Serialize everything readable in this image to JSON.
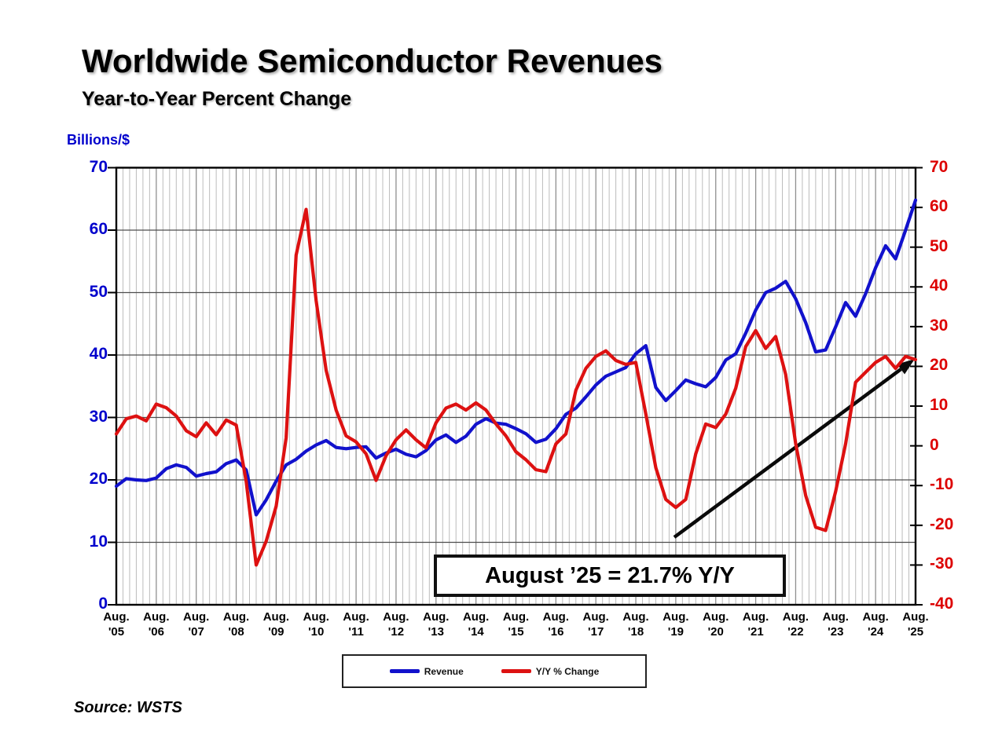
{
  "chart_data": {
    "type": "line",
    "title": "Worldwide Semiconductor Revenues",
    "subtitle": "Year-to-Year Percent Change",
    "source": "Source: WSTS",
    "annotation": {
      "text": "August ’25 = 21.7% Y/Y",
      "value_pct": 21.7,
      "points_to": "end of Y/Y % Change line"
    },
    "x_start": "Aug 2005",
    "x_end": "Aug 2025",
    "x_months": 240,
    "sample_interval_months": 3,
    "x_tick_labels": [
      {
        "l1": "Aug.",
        "l2": "'05"
      },
      {
        "l1": "Aug.",
        "l2": "'06"
      },
      {
        "l1": "Aug.",
        "l2": "'07"
      },
      {
        "l1": "Aug.",
        "l2": "'08"
      },
      {
        "l1": "Aug.",
        "l2": "'09"
      },
      {
        "l1": "Aug.",
        "l2": "'10"
      },
      {
        "l1": "Aug.",
        "l2": "'11"
      },
      {
        "l1": "Aug.",
        "l2": "'12"
      },
      {
        "l1": "Aug.",
        "l2": "'13"
      },
      {
        "l1": "Aug.",
        "l2": "'14"
      },
      {
        "l1": "Aug.",
        "l2": "'15"
      },
      {
        "l1": "Aug.",
        "l2": "'16"
      },
      {
        "l1": "Aug.",
        "l2": "'17"
      },
      {
        "l1": "Aug.",
        "l2": "'18"
      },
      {
        "l1": "Aug.",
        "l2": "'19"
      },
      {
        "l1": "Aug.",
        "l2": "'20"
      },
      {
        "l1": "Aug.",
        "l2": "'21"
      },
      {
        "l1": "Aug.",
        "l2": "'22"
      },
      {
        "l1": "Aug.",
        "l2": "'23"
      },
      {
        "l1": "Aug.",
        "l2": "'24"
      },
      {
        "l1": "Aug.",
        "l2": "'25"
      }
    ],
    "left_axis": {
      "unit_label": "Billions/$",
      "range": [
        0,
        70
      ],
      "ticks": [
        0,
        10,
        20,
        30,
        40,
        50,
        60,
        70
      ],
      "text_color": "#0000cc"
    },
    "right_axis": {
      "unit_label": "Y/Y % Change",
      "range": [
        -40,
        70
      ],
      "ticks": [
        -40,
        -30,
        -20,
        -10,
        0,
        10,
        20,
        30,
        40,
        50,
        60,
        70
      ],
      "text_color": "#dd0000"
    },
    "grid": {
      "vertical_every_months": 2,
      "darker_vertical_every_months": 12,
      "horizontal_every_left_units": 10
    },
    "legend": {
      "position": "bottom-center",
      "items": [
        {
          "label": "Revenue",
          "color": "#1111cc"
        },
        {
          "label": "Y/Y % Change",
          "color": "#dd1111"
        }
      ]
    },
    "series": [
      {
        "name": "Revenue",
        "axis": "left",
        "color": "#1111cc",
        "values": [
          19.0,
          20.2,
          20.0,
          19.9,
          20.3,
          21.8,
          22.4,
          22.0,
          20.6,
          21.0,
          21.3,
          22.6,
          23.2,
          21.6,
          14.4,
          16.8,
          19.8,
          22.4,
          23.3,
          24.6,
          25.6,
          26.3,
          25.2,
          25.0,
          25.2,
          25.3,
          23.5,
          24.3,
          24.9,
          24.1,
          23.7,
          24.7,
          26.4,
          27.2,
          26.0,
          27.0,
          28.9,
          29.8,
          29.1,
          28.9,
          28.2,
          27.4,
          26.0,
          26.5,
          28.2,
          30.5,
          31.5,
          33.3,
          35.2,
          36.6,
          37.3,
          38.0,
          40.2,
          41.5,
          34.8,
          32.7,
          34.3,
          36.0,
          35.4,
          34.9,
          36.4,
          39.2,
          40.2,
          43.5,
          47.2,
          50.0,
          50.7,
          51.8,
          49.0,
          45.2,
          40.5,
          40.8,
          44.5,
          48.4,
          46.2,
          49.8,
          54.0,
          57.5,
          55.4,
          60.0,
          64.8
        ]
      },
      {
        "name": "Y/Y % Change",
        "axis": "right",
        "color": "#dd1111",
        "values": [
          3.0,
          6.8,
          7.5,
          6.3,
          10.5,
          9.6,
          7.5,
          3.8,
          2.3,
          5.8,
          2.8,
          6.5,
          5.2,
          -9.0,
          -30.0,
          -24.0,
          -15.2,
          2.0,
          48.0,
          59.5,
          36.5,
          19.0,
          9.0,
          2.5,
          1.0,
          -2.0,
          -8.7,
          -2.5,
          1.5,
          4.0,
          1.5,
          -0.5,
          5.8,
          9.5,
          10.5,
          9.0,
          10.8,
          9.0,
          5.5,
          2.5,
          -1.5,
          -3.5,
          -6.0,
          -6.5,
          0.5,
          3.0,
          14.0,
          19.5,
          22.5,
          23.9,
          21.5,
          20.5,
          21.0,
          8.0,
          -5.5,
          -13.5,
          -15.5,
          -13.5,
          -2.0,
          5.5,
          4.6,
          8.0,
          14.5,
          25.0,
          29.0,
          24.5,
          27.5,
          18.0,
          0.5,
          -12.5,
          -20.5,
          -21.3,
          -11.5,
          0.5,
          16.0,
          18.5,
          21.0,
          22.5,
          19.5,
          22.5,
          21.7
        ]
      }
    ],
    "colors": {
      "revenue_line": "#1111cc",
      "yoy_line": "#dd1111",
      "grid_minor": "#bcbcbc",
      "grid_year": "#8f8f8f",
      "grid_major_h": "#4d4d4d",
      "axis_spine": "#000000",
      "arrow": "#0a0a0a"
    }
  }
}
